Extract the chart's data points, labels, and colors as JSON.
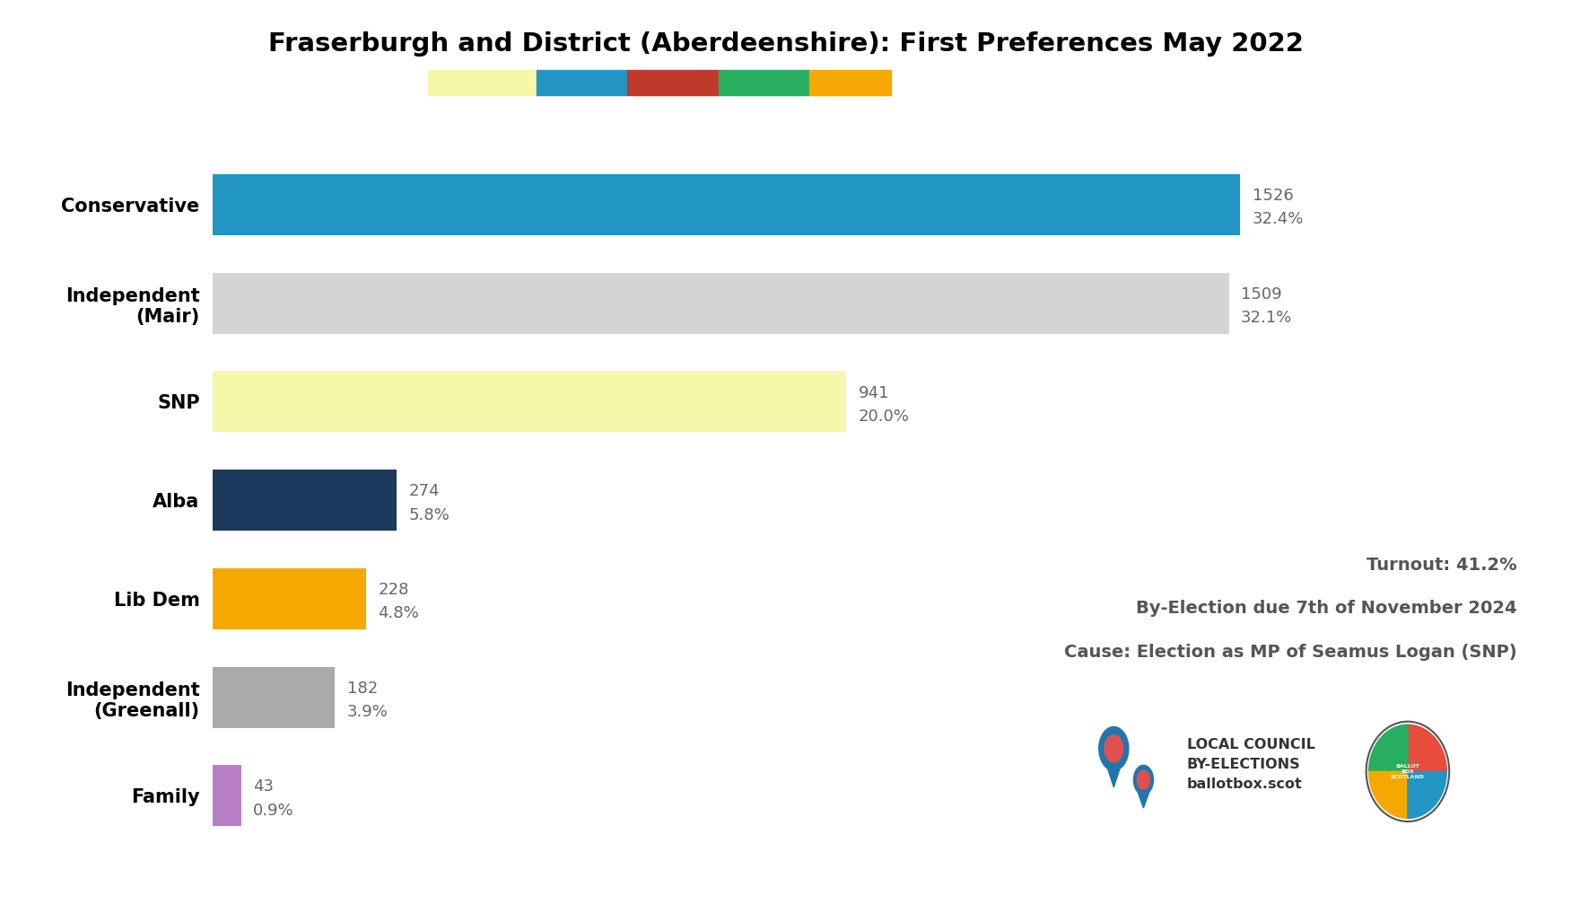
{
  "title": "Fraserburgh and District (Aberdeenshire): First Preferences May 2022",
  "categories": [
    "Conservative",
    "Independent\n(Mair)",
    "SNP",
    "Alba",
    "Lib Dem",
    "Independent\n(Greenall)",
    "Family"
  ],
  "values": [
    1526,
    1509,
    941,
    274,
    228,
    182,
    43
  ],
  "percentages": [
    "32.4",
    "32.1",
    "20.0",
    "5.8",
    "4.8",
    "3.9",
    "0.9"
  ],
  "bar_colors": [
    "#2196c4",
    "#d4d4d4",
    "#f7f7aa",
    "#1b3a5c",
    "#f5a800",
    "#aaaaaa",
    "#b87fc8"
  ],
  "background_color": "#ffffff",
  "title_fontsize": 21,
  "label_fontsize": 15,
  "annotation_fontsize": 13,
  "annotation_color": "#666666",
  "turnout_text": "Turnout: 41.2%",
  "byelection_text": "By-Election due 7th of November 2024",
  "cause_text": "Cause: Election as MP of Seamus Logan (SNP)",
  "info_color": "#555555",
  "info_fontsize": 14,
  "color_strip": [
    "#f7f7aa",
    "#2196c4",
    "#c0392b",
    "#27ae60",
    "#f5a800"
  ],
  "color_strip_widths": [
    1.2,
    1.0,
    1.0,
    1.0,
    0.9
  ],
  "xlim": [
    0,
    1750
  ]
}
